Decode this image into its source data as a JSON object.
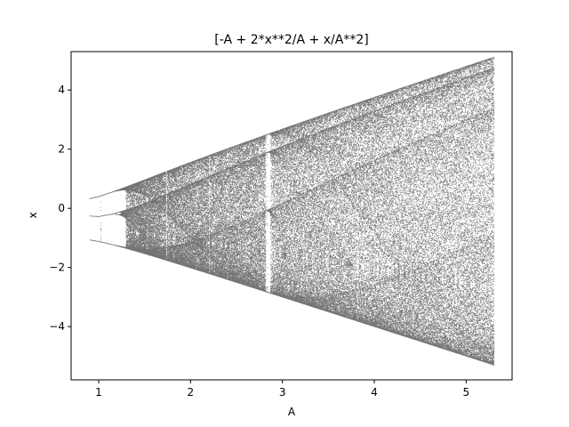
{
  "chart_data": {
    "type": "scatter",
    "title": "[-A + 2*x**2/A + x/A**2]",
    "xlabel": "A",
    "ylabel": "x",
    "xlim": [
      0.7,
      5.5
    ],
    "ylim": [
      -5.8,
      5.3
    ],
    "xticks": [
      1,
      2,
      3,
      4,
      5
    ],
    "xtick_labels": [
      "1",
      "2",
      "3",
      "4",
      "5"
    ],
    "yticks": [
      -4,
      -2,
      0,
      2,
      4
    ],
    "ytick_labels": [
      "−4",
      "−2",
      "0",
      "2",
      "4"
    ],
    "grid": false,
    "point_color": "#000000",
    "series": [
      {
        "description_of_map": "bifurcation diagram of x_{n+1} = -A + 2*x_n**2/A + x_n/A**2",
        "A_range": [
          0.9,
          5.3
        ],
        "lower_envelope": [
          [
            0.9,
            -1.05
          ],
          [
            1.3,
            -1.3
          ],
          [
            2.0,
            -1.8
          ],
          [
            3.0,
            -2.95
          ],
          [
            4.0,
            -4.05
          ],
          [
            5.3,
            -5.25
          ]
        ],
        "upper_envelope": [
          [
            0.9,
            0.35
          ],
          [
            1.3,
            0.65
          ],
          [
            2.0,
            1.45
          ],
          [
            3.0,
            2.6
          ],
          [
            4.0,
            3.75
          ],
          [
            5.3,
            5.1
          ]
        ]
      }
    ]
  }
}
